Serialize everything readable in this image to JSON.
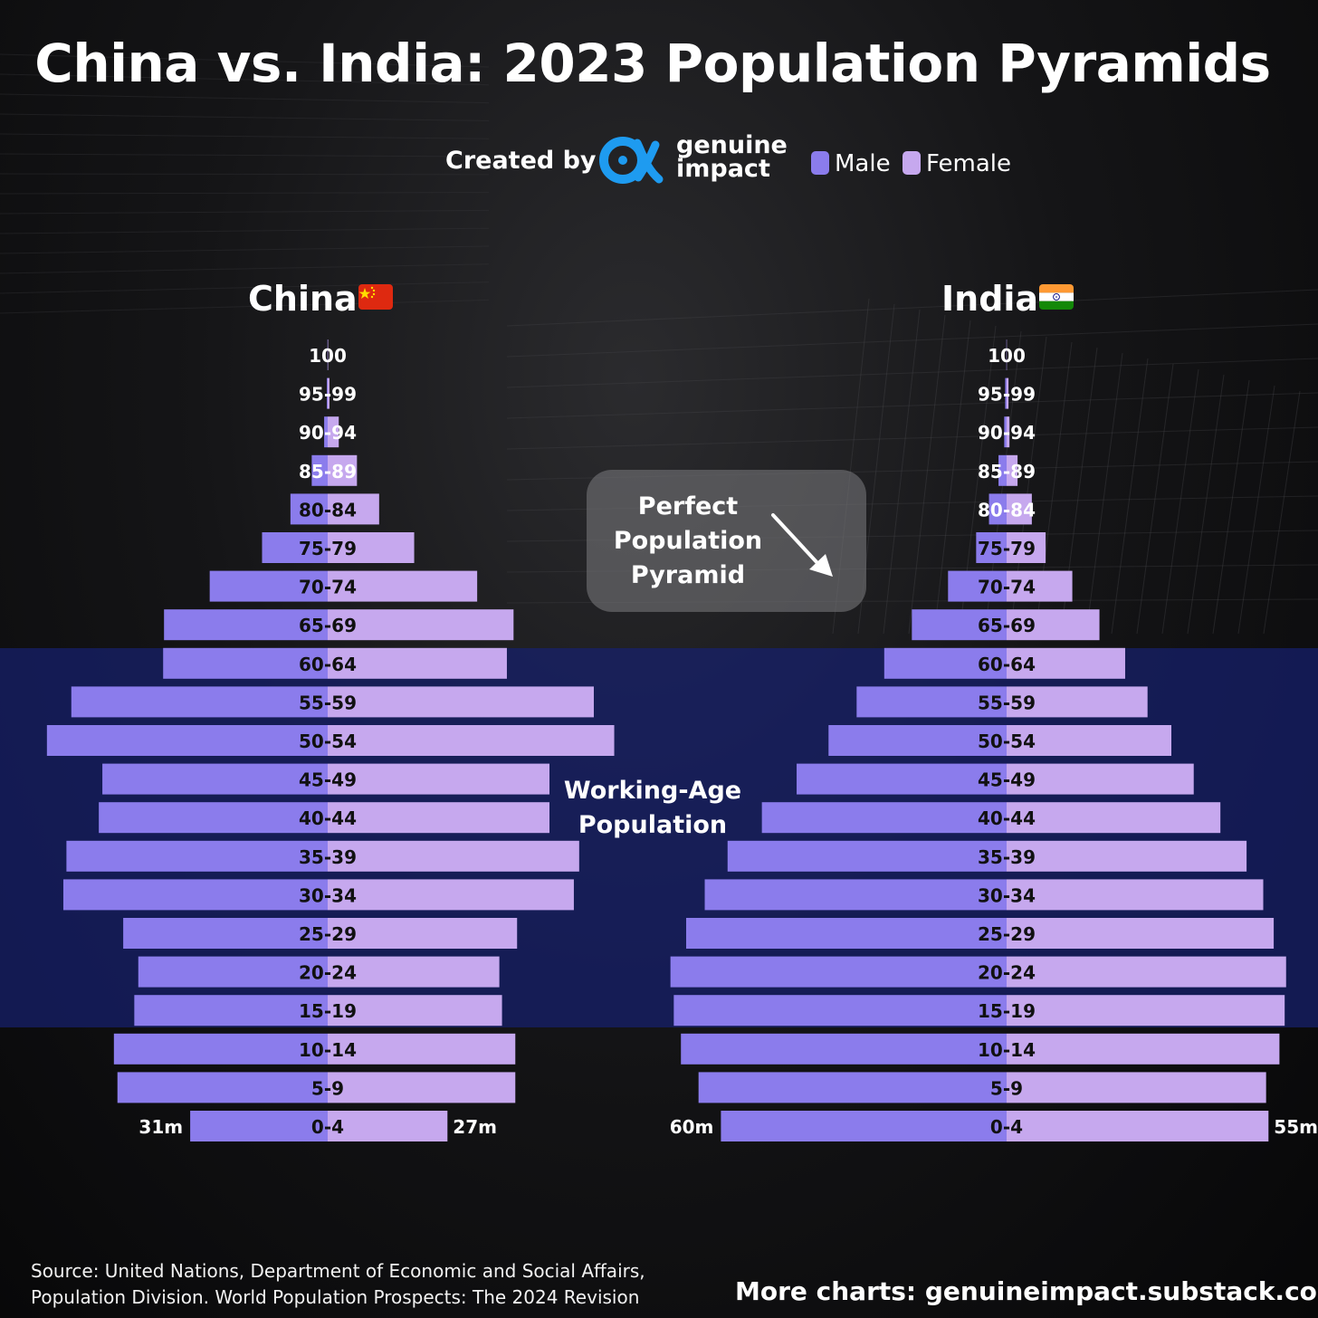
{
  "title": "China vs. India: 2023 Population Pyramids",
  "credit": {
    "created_by": "Created by",
    "brand_line1": "genuine",
    "brand_line2": "impact"
  },
  "legend": [
    {
      "label": "Male",
      "color": "#8b7cec"
    },
    {
      "label": "Female",
      "color": "#c6a8ee"
    }
  ],
  "callout": {
    "text": "Perfect\nPopulation\nPyramid"
  },
  "working_age_label": "Working-Age\nPopulation",
  "source": "Source: United Nations, Department of Economic and Social Affairs, Population Division. World Population Prospects: The 2024 Revision",
  "more_charts": "More charts: genuineimpact.substack.com",
  "colors": {
    "male": "#8b7cec",
    "female": "#c6a8ee",
    "working_age_band": "#16206e",
    "brand": "#1e9bf0"
  },
  "chart_data": [
    {
      "type": "bar",
      "title": "China",
      "flag": "china-flag-icon",
      "unit": "million",
      "categories": [
        "100",
        "95-99",
        "90-94",
        "85-89",
        "80-84",
        "75-79",
        "70-74",
        "65-69",
        "60-64",
        "55-59",
        "50-54",
        "45-49",
        "40-44",
        "35-39",
        "30-34",
        "25-29",
        "20-24",
        "15-19",
        "10-14",
        "5-9",
        "0-4"
      ],
      "series": [
        {
          "name": "Male",
          "values": [
            0.05,
            0.2,
            0.8,
            3.6,
            8.4,
            14.8,
            26.6,
            36.9,
            37.1,
            57.8,
            63.3,
            50.8,
            51.6,
            58.9,
            59.6,
            46.1,
            42.7,
            43.6,
            48.2,
            47.4,
            31.0
          ]
        },
        {
          "name": "Female",
          "values": [
            0.1,
            0.4,
            2.5,
            6.6,
            11.6,
            19.5,
            33.7,
            41.9,
            40.4,
            60.0,
            64.6,
            50.0,
            50.0,
            56.7,
            55.5,
            42.7,
            38.7,
            39.3,
            42.3,
            42.3,
            27.0
          ]
        }
      ],
      "end_labels": {
        "male": "31m",
        "female": "27m"
      },
      "working_age_range": [
        "15-19",
        "60-64"
      ]
    },
    {
      "type": "bar",
      "title": "India",
      "flag": "india-flag-icon",
      "unit": "million",
      "categories": [
        "100",
        "95-99",
        "90-94",
        "85-89",
        "80-84",
        "75-79",
        "70-74",
        "65-69",
        "60-64",
        "55-59",
        "50-54",
        "45-49",
        "40-44",
        "35-39",
        "30-34",
        "25-29",
        "20-24",
        "15-19",
        "10-14",
        "5-9",
        "0-4"
      ],
      "series": [
        {
          "name": "Male",
          "values": [
            0.05,
            0.3,
            0.5,
            1.7,
            3.7,
            6.4,
            12.3,
            19.9,
            25.7,
            31.5,
            37.4,
            44.1,
            51.4,
            58.6,
            63.4,
            67.3,
            70.6,
            69.9,
            68.4,
            64.7,
            60.0
          ]
        },
        {
          "name": "Female",
          "values": [
            0.05,
            0.4,
            0.6,
            2.3,
            5.3,
            8.2,
            13.8,
            19.5,
            24.9,
            29.6,
            34.6,
            39.3,
            44.9,
            50.4,
            53.9,
            56.1,
            58.7,
            58.4,
            57.3,
            54.5,
            55.0
          ]
        }
      ],
      "end_labels": {
        "male": "60m",
        "female": "55m"
      },
      "working_age_range": [
        "15-19",
        "60-64"
      ]
    }
  ]
}
